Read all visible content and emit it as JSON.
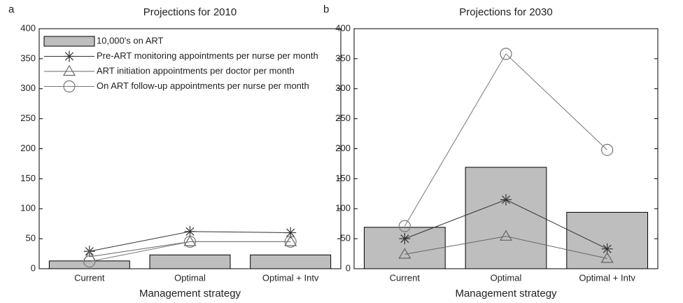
{
  "chart_data": [
    {
      "type": "bar",
      "panel_label": "a",
      "title": "Projections for 2010",
      "x_label": "Management strategy",
      "categories": [
        "Current",
        "Optimal",
        "Optimal + Intv"
      ],
      "ylim": [
        0,
        400
      ],
      "yticks": [
        0,
        50,
        100,
        150,
        200,
        250,
        300,
        350,
        400
      ],
      "legend": "upper left",
      "series": [
        {
          "name": "10,000's on ART",
          "type": "bar",
          "color": "#bebebe",
          "values": [
            13,
            23,
            23
          ]
        },
        {
          "name": "Pre-ART monitoring appointments per nurse per month",
          "type": "line",
          "marker": "star",
          "color": "#333333",
          "values": [
            29,
            62,
            60
          ]
        },
        {
          "name": "ART initiation appointments per doctor per month",
          "type": "line",
          "marker": "triangle",
          "color": "#666666",
          "values": [
            20,
            45,
            45
          ]
        },
        {
          "name": "On ART follow-up appointments per nurse per month",
          "type": "line",
          "marker": "circle",
          "color": "#777777",
          "values": [
            12,
            45,
            45
          ]
        }
      ]
    },
    {
      "type": "bar",
      "panel_label": "b",
      "title": "Projections for 2030",
      "x_label": "Management strategy",
      "categories": [
        "Current",
        "Optimal",
        "Optimal + Intv"
      ],
      "ylim": [
        0,
        400
      ],
      "yticks": [
        0,
        50,
        100,
        150,
        200,
        250,
        300,
        350,
        400
      ],
      "series": [
        {
          "type": "bar",
          "color": "#bebebe",
          "values": [
            69,
            169,
            94
          ]
        },
        {
          "type": "line",
          "marker": "star",
          "color": "#333333",
          "values": [
            50,
            115,
            33
          ]
        },
        {
          "type": "line",
          "marker": "triangle",
          "color": "#666666",
          "values": [
            24,
            54,
            17
          ]
        },
        {
          "type": "line",
          "marker": "circle",
          "color": "#777777",
          "values": [
            71,
            358,
            198
          ]
        }
      ]
    }
  ]
}
